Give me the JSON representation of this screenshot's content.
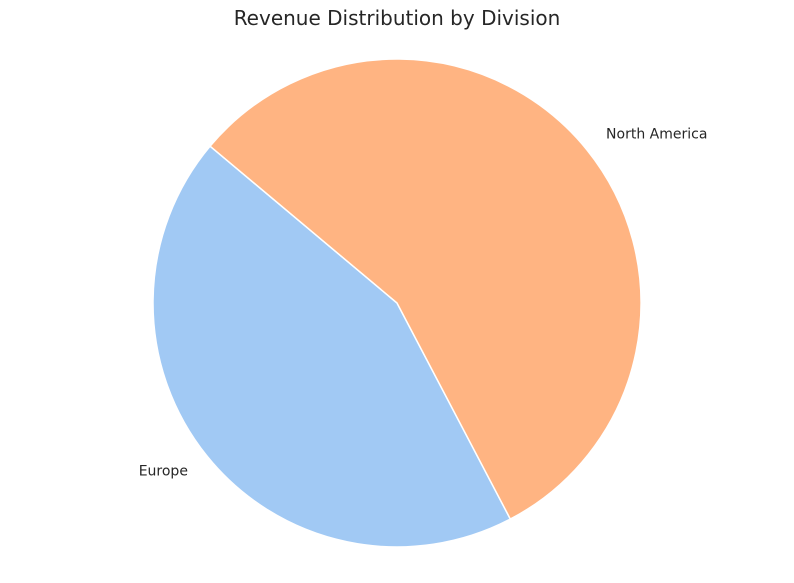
{
  "chart_data": {
    "type": "pie",
    "title": "Revenue Distribution by Division",
    "slices": [
      {
        "label": "Europe",
        "value": 43.8,
        "color": "#a1c9f4"
      },
      {
        "label": "North America",
        "value": 56.2,
        "color": "#ffb482"
      }
    ],
    "start_angle_deg": 140,
    "direction": "counterclockwise",
    "edge_color": "#ffffff"
  }
}
